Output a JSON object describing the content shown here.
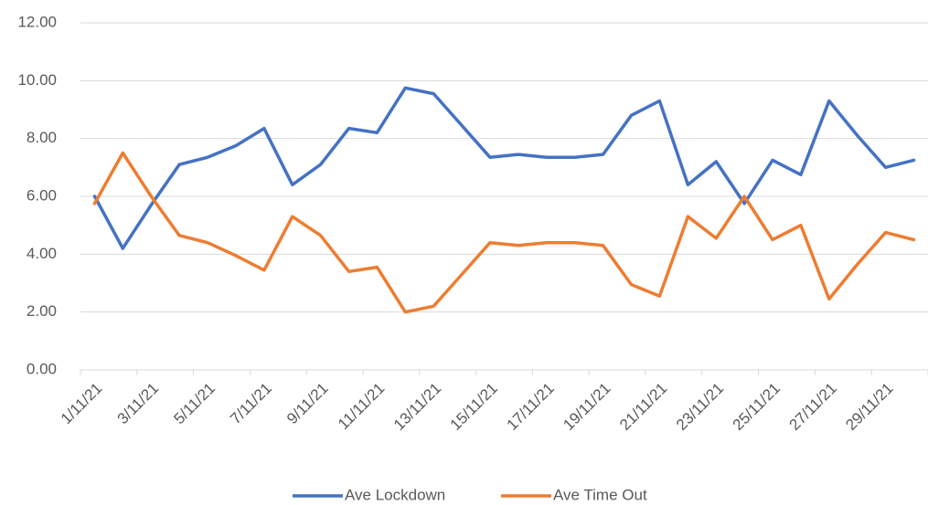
{
  "chart_data": {
    "type": "line",
    "categories": [
      "1/11/21",
      null,
      "3/11/21",
      null,
      "5/11/21",
      null,
      "7/11/21",
      null,
      "9/11/21",
      null,
      "11/11/21",
      null,
      "13/11/21",
      null,
      "15/11/21",
      null,
      "17/11/21",
      null,
      "19/11/21",
      null,
      "21/11/21",
      null,
      "23/11/21",
      null,
      "25/11/21",
      null,
      "27/11/21",
      null,
      "29/11/21",
      null
    ],
    "series": [
      {
        "name": "Ave Lockdown",
        "color": "#4472c4",
        "values": [
          6.0,
          4.2,
          5.7,
          7.1,
          7.35,
          7.75,
          8.35,
          6.4,
          7.1,
          8.35,
          8.2,
          9.75,
          9.55,
          8.45,
          7.35,
          7.45,
          7.35,
          7.35,
          7.45,
          8.8,
          9.3,
          6.4,
          7.2,
          5.75,
          7.25,
          6.75,
          9.3,
          8.1,
          7.0,
          7.25
        ]
      },
      {
        "name": "Ave Time Out",
        "color": "#ed7d31",
        "values": [
          5.75,
          7.5,
          6.0,
          4.65,
          4.4,
          3.95,
          3.45,
          5.3,
          4.65,
          3.4,
          3.55,
          2.0,
          2.2,
          3.3,
          4.4,
          4.3,
          4.4,
          4.4,
          4.3,
          2.95,
          2.55,
          5.3,
          4.55,
          6.0,
          4.5,
          5.0,
          2.45,
          3.65,
          4.75,
          4.5
        ]
      }
    ],
    "ylim": [
      0,
      12
    ],
    "yticks": [
      {
        "value": 0,
        "label": "0.00"
      },
      {
        "value": 2,
        "label": "2.00"
      },
      {
        "value": 4,
        "label": "4.00"
      },
      {
        "value": 6,
        "label": "6.00"
      },
      {
        "value": 8,
        "label": "8.00"
      },
      {
        "value": 10,
        "label": "10.00"
      },
      {
        "value": 12,
        "label": "12.00"
      }
    ],
    "grid": true,
    "legend": "bottom"
  }
}
